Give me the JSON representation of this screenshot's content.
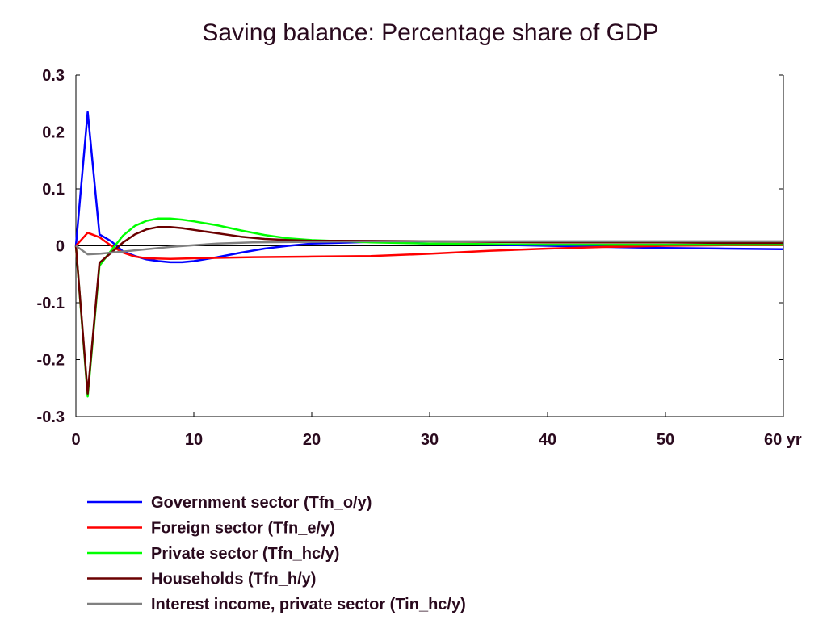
{
  "chart_data": {
    "type": "line",
    "title": "Saving balance: Percentage share of GDP",
    "xlabel": "",
    "ylabel": "",
    "x_unit": "yr",
    "xlim": [
      0,
      60
    ],
    "ylim": [
      -0.3,
      0.3
    ],
    "x_ticks": [
      0,
      10,
      20,
      30,
      40,
      50,
      60
    ],
    "x_tick_labels": [
      "0",
      "10",
      "20",
      "30",
      "40",
      "50",
      "60 yr"
    ],
    "y_ticks": [
      0.3,
      0.2,
      0.1,
      0,
      -0.1,
      -0.2,
      -0.3
    ],
    "y_tick_labels": [
      "0.3",
      "0.2",
      "0.1",
      "0",
      "-0.1",
      "-0.2",
      "-0.3"
    ],
    "grid": false,
    "legend_position": "bottom",
    "series": [
      {
        "name": "Government sector (Tfn_o/y)",
        "color": "#0000ff",
        "points": [
          [
            0,
            0
          ],
          [
            1,
            0.235
          ],
          [
            2,
            0.02
          ],
          [
            3,
            0.008
          ],
          [
            4,
            -0.01
          ],
          [
            5,
            -0.018
          ],
          [
            6,
            -0.024
          ],
          [
            7,
            -0.027
          ],
          [
            8,
            -0.029
          ],
          [
            9,
            -0.029
          ],
          [
            10,
            -0.027
          ],
          [
            12,
            -0.02
          ],
          [
            14,
            -0.012
          ],
          [
            16,
            -0.005
          ],
          [
            18,
            0.0
          ],
          [
            20,
            0.004
          ],
          [
            25,
            0.007
          ],
          [
            30,
            0.004
          ],
          [
            35,
            0.002
          ],
          [
            40,
            0.0
          ],
          [
            45,
            -0.002
          ],
          [
            50,
            -0.004
          ],
          [
            55,
            -0.005
          ],
          [
            60,
            -0.006
          ]
        ]
      },
      {
        "name": "Foreign sector (Tfn_e/y)",
        "color": "#ff0000",
        "points": [
          [
            0,
            0
          ],
          [
            1,
            0.023
          ],
          [
            2,
            0.015
          ],
          [
            3,
            0.0
          ],
          [
            4,
            -0.012
          ],
          [
            5,
            -0.019
          ],
          [
            6,
            -0.022
          ],
          [
            8,
            -0.023
          ],
          [
            10,
            -0.022
          ],
          [
            15,
            -0.02
          ],
          [
            20,
            -0.019
          ],
          [
            25,
            -0.018
          ],
          [
            30,
            -0.014
          ],
          [
            35,
            -0.009
          ],
          [
            40,
            -0.005
          ],
          [
            45,
            -0.002
          ],
          [
            50,
            0.0
          ],
          [
            55,
            0.001
          ],
          [
            60,
            0.001
          ]
        ]
      },
      {
        "name": "Private sector (Tfn_hc/y)",
        "color": "#00ff00",
        "points": [
          [
            0,
            0
          ],
          [
            1,
            -0.265
          ],
          [
            2,
            -0.035
          ],
          [
            3,
            -0.008
          ],
          [
            4,
            0.018
          ],
          [
            5,
            0.035
          ],
          [
            6,
            0.044
          ],
          [
            7,
            0.048
          ],
          [
            8,
            0.048
          ],
          [
            9,
            0.046
          ],
          [
            10,
            0.043
          ],
          [
            12,
            0.036
          ],
          [
            14,
            0.027
          ],
          [
            16,
            0.019
          ],
          [
            18,
            0.013
          ],
          [
            20,
            0.01
          ],
          [
            25,
            0.006
          ],
          [
            30,
            0.004
          ],
          [
            35,
            0.003
          ],
          [
            40,
            0.002
          ],
          [
            45,
            0.002
          ],
          [
            50,
            0.002
          ],
          [
            55,
            0.002
          ],
          [
            60,
            0.002
          ]
        ]
      },
      {
        "name": "Households (Tfn_h/y)",
        "color": "#6b0000",
        "points": [
          [
            0,
            0
          ],
          [
            1,
            -0.26
          ],
          [
            2,
            -0.03
          ],
          [
            3,
            -0.012
          ],
          [
            4,
            0.006
          ],
          [
            5,
            0.02
          ],
          [
            6,
            0.029
          ],
          [
            7,
            0.033
          ],
          [
            8,
            0.033
          ],
          [
            9,
            0.031
          ],
          [
            10,
            0.028
          ],
          [
            12,
            0.022
          ],
          [
            14,
            0.016
          ],
          [
            16,
            0.012
          ],
          [
            18,
            0.01
          ],
          [
            20,
            0.009
          ],
          [
            25,
            0.009
          ],
          [
            30,
            0.008
          ],
          [
            35,
            0.007
          ],
          [
            40,
            0.006
          ],
          [
            45,
            0.006
          ],
          [
            50,
            0.006
          ],
          [
            55,
            0.005
          ],
          [
            60,
            0.005
          ]
        ]
      },
      {
        "name": "Interest income, private sector (Tin_hc/y)",
        "color": "#808080",
        "points": [
          [
            0,
            0
          ],
          [
            1,
            -0.015
          ],
          [
            2,
            -0.014
          ],
          [
            3,
            -0.012
          ],
          [
            4,
            -0.01
          ],
          [
            6,
            -0.006
          ],
          [
            8,
            -0.002
          ],
          [
            10,
            0.001
          ],
          [
            12,
            0.004
          ],
          [
            15,
            0.006
          ],
          [
            20,
            0.007
          ],
          [
            25,
            0.008
          ],
          [
            30,
            0.008
          ],
          [
            35,
            0.008
          ],
          [
            40,
            0.008
          ],
          [
            45,
            0.008
          ],
          [
            50,
            0.008
          ],
          [
            55,
            0.008
          ],
          [
            60,
            0.008
          ]
        ]
      }
    ]
  }
}
